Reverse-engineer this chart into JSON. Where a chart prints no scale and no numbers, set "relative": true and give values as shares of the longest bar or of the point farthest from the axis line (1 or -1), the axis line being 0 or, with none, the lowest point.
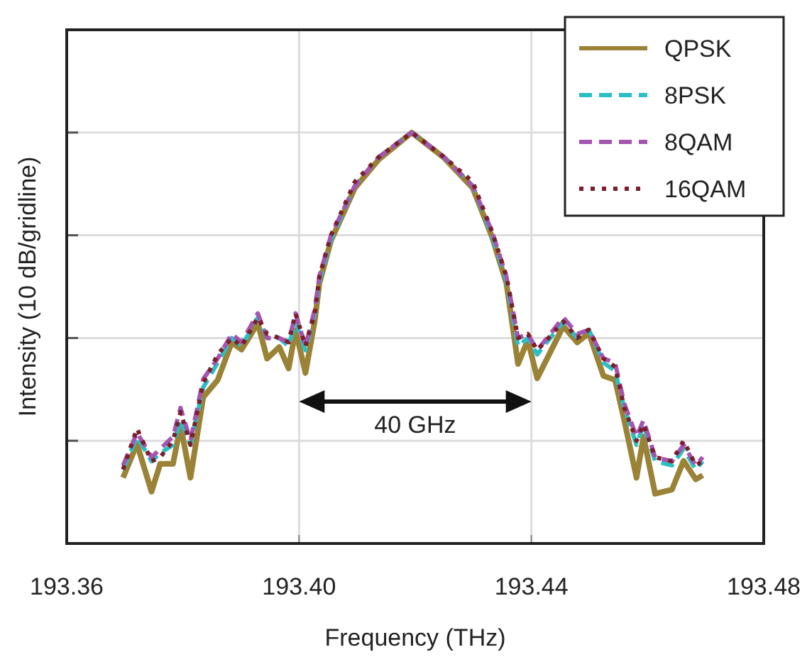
{
  "chart_data": {
    "type": "line",
    "xlabel": "Frequency (THz)",
    "ylabel": "Intensity (10 dB/gridline)",
    "relative": true,
    "grid": true,
    "legend": "top right",
    "tick_labels": "x",
    "xlim": [
      193.36,
      193.48
    ],
    "xticks": [
      {
        "value": 193.36,
        "label": "193.36"
      },
      {
        "value": 193.4,
        "label": "193.40"
      },
      {
        "value": 193.44,
        "label": "193.44"
      },
      {
        "value": 193.48,
        "label": "193.48"
      }
    ],
    "x": [
      193.3697,
      193.3721,
      193.3746,
      193.3761,
      193.3783,
      193.3796,
      193.3813,
      193.3835,
      193.386,
      193.3884,
      193.3901,
      193.3929,
      193.3945,
      193.3966,
      193.3982,
      193.3994,
      193.4011,
      193.4027,
      193.4035,
      193.4055,
      193.4096,
      193.4137,
      193.4194,
      193.425,
      193.4299,
      193.4332,
      193.4357,
      193.4377,
      193.4394,
      193.441,
      193.4455,
      193.4479,
      193.4499,
      193.4524,
      193.4544,
      193.456,
      193.4581,
      193.4593,
      193.4613,
      193.4642,
      193.4662,
      193.4683,
      193.4695
    ],
    "series": [
      {
        "name": "QPSK",
        "color": "#9a8236",
        "line_style": "solid",
        "values": [
          0.16,
          0.242,
          0.126,
          0.194,
          0.194,
          0.287,
          0.16,
          0.356,
          0.398,
          0.489,
          0.472,
          0.536,
          0.45,
          0.478,
          0.426,
          0.519,
          0.415,
          0.541,
          0.633,
          0.737,
          0.865,
          0.934,
          1,
          0.938,
          0.865,
          0.747,
          0.633,
          0.437,
          0.495,
          0.402,
          0.529,
          0.489,
          0.512,
          0.408,
          0.398,
          0.299,
          0.16,
          0.26,
          0.121,
          0.131,
          0.201,
          0.156,
          0.166
        ]
      },
      {
        "name": "8PSK",
        "color": "#2bbfc4",
        "line_style": "dashed",
        "values": [
          0.18,
          0.26,
          0.2,
          0.22,
          0.24,
          0.3,
          0.24,
          0.38,
          0.44,
          0.5,
          0.48,
          0.55,
          0.5,
          0.5,
          0.48,
          0.54,
          0.47,
          0.56,
          0.64,
          0.74,
          0.87,
          0.94,
          1,
          0.94,
          0.87,
          0.75,
          0.64,
          0.48,
          0.5,
          0.46,
          0.54,
          0.5,
          0.52,
          0.44,
          0.42,
          0.33,
          0.24,
          0.29,
          0.2,
          0.19,
          0.23,
          0.18,
          0.2
        ]
      },
      {
        "name": "8QAM",
        "color": "#a455b0",
        "line_style": "dashed",
        "values": [
          0.19,
          0.27,
          0.21,
          0.23,
          0.26,
          0.33,
          0.25,
          0.4,
          0.45,
          0.51,
          0.49,
          0.56,
          0.5,
          0.5,
          0.49,
          0.56,
          0.48,
          0.57,
          0.65,
          0.75,
          0.87,
          0.94,
          1,
          0.94,
          0.87,
          0.76,
          0.65,
          0.5,
          0.51,
          0.47,
          0.55,
          0.51,
          0.52,
          0.45,
          0.44,
          0.34,
          0.26,
          0.3,
          0.21,
          0.2,
          0.24,
          0.19,
          0.21
        ]
      },
      {
        "name": "16QAM",
        "color": "#7a1f2b",
        "line_style": "dotted",
        "values": [
          0.18,
          0.28,
          0.2,
          0.21,
          0.25,
          0.32,
          0.24,
          0.39,
          0.46,
          0.5,
          0.48,
          0.55,
          0.51,
          0.5,
          0.49,
          0.56,
          0.48,
          0.56,
          0.65,
          0.75,
          0.88,
          0.94,
          1,
          0.94,
          0.88,
          0.76,
          0.65,
          0.5,
          0.51,
          0.47,
          0.54,
          0.5,
          0.52,
          0.45,
          0.43,
          0.33,
          0.25,
          0.29,
          0.21,
          0.2,
          0.25,
          0.19,
          0.2
        ]
      }
    ],
    "annotations": [
      "40 GHz"
    ]
  }
}
